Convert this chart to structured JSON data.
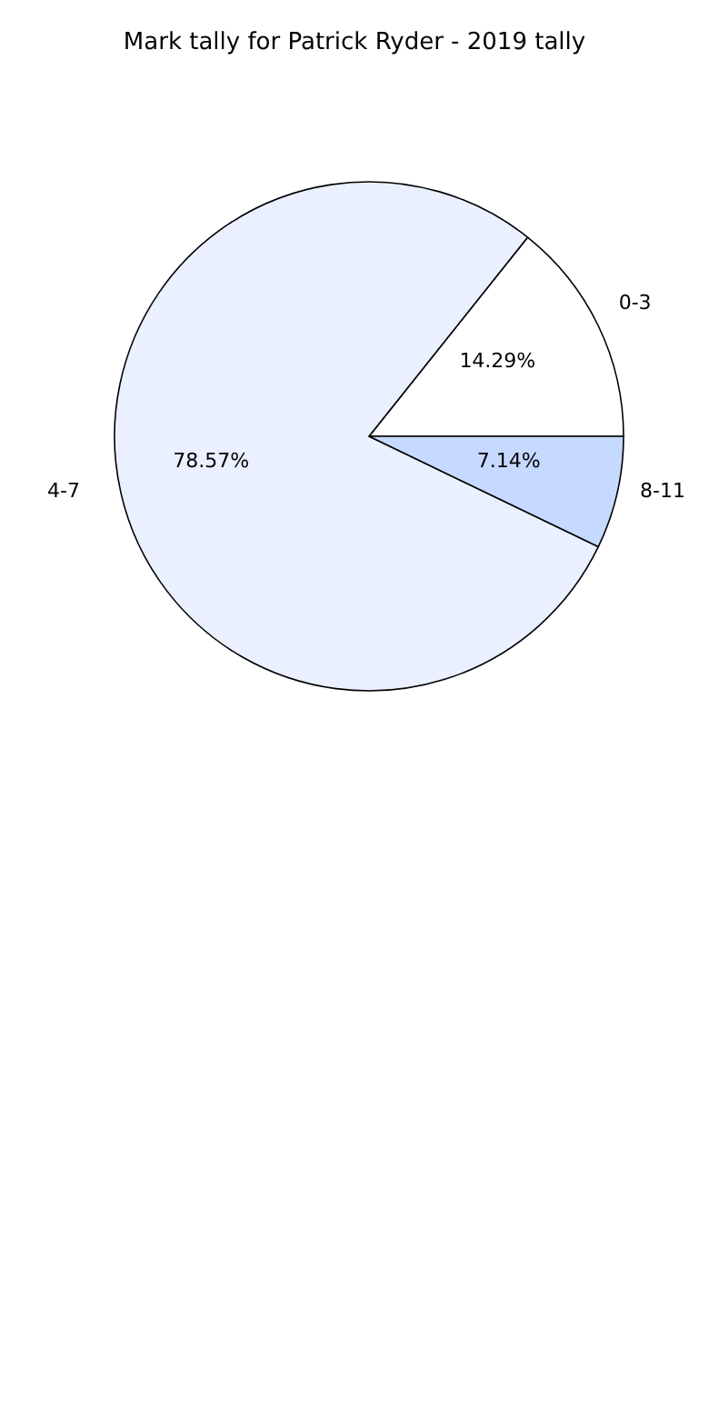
{
  "chart_data": {
    "type": "pie",
    "title": "Mark tally for Patrick Ryder - 2019 tally",
    "categories": [
      "0-3",
      "4-7",
      "8-11"
    ],
    "values": [
      14.29,
      78.57,
      7.14
    ],
    "value_labels": [
      "14.29%",
      "78.57%",
      "7.14%"
    ],
    "colors": [
      "#ffffff",
      "#eaf0ff",
      "#c6d9ff"
    ]
  }
}
